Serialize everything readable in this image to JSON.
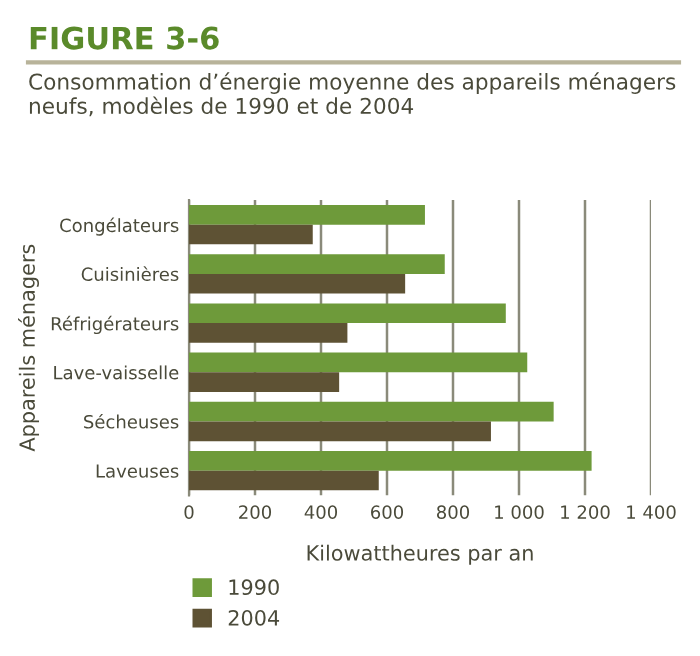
{
  "chart_data": {
    "type": "bar",
    "orientation": "horizontal",
    "title": "FIGURE 3-6",
    "subtitle": "Consommation d’énergie moyenne des appareils ménagers neufs, modèles de 1990 et de 2004",
    "xlabel": "Kilowattheures par an",
    "ylabel": "Appareils ménagers",
    "categories": [
      "Congélateurs",
      "Cuisinières",
      "Réfrigérateurs",
      "Lave-vaisselle",
      "Sécheuses",
      "Laveuses"
    ],
    "series": [
      {
        "name": "1990",
        "color": "#6e9a3a",
        "values": [
          715,
          775,
          960,
          1025,
          1105,
          1220
        ]
      },
      {
        "name": "2004",
        "color": "#5e5234",
        "values": [
          375,
          655,
          480,
          455,
          915,
          575
        ]
      }
    ],
    "xlim": [
      0,
      1400
    ],
    "xticks": [
      0,
      200,
      400,
      600,
      800,
      {
        "value": 1000,
        "label": "1 000"
      },
      {
        "value": 1200,
        "label": "1 200"
      },
      {
        "value": 1400,
        "label": "1 400"
      }
    ],
    "grid": "x",
    "legend": "bottom left"
  }
}
